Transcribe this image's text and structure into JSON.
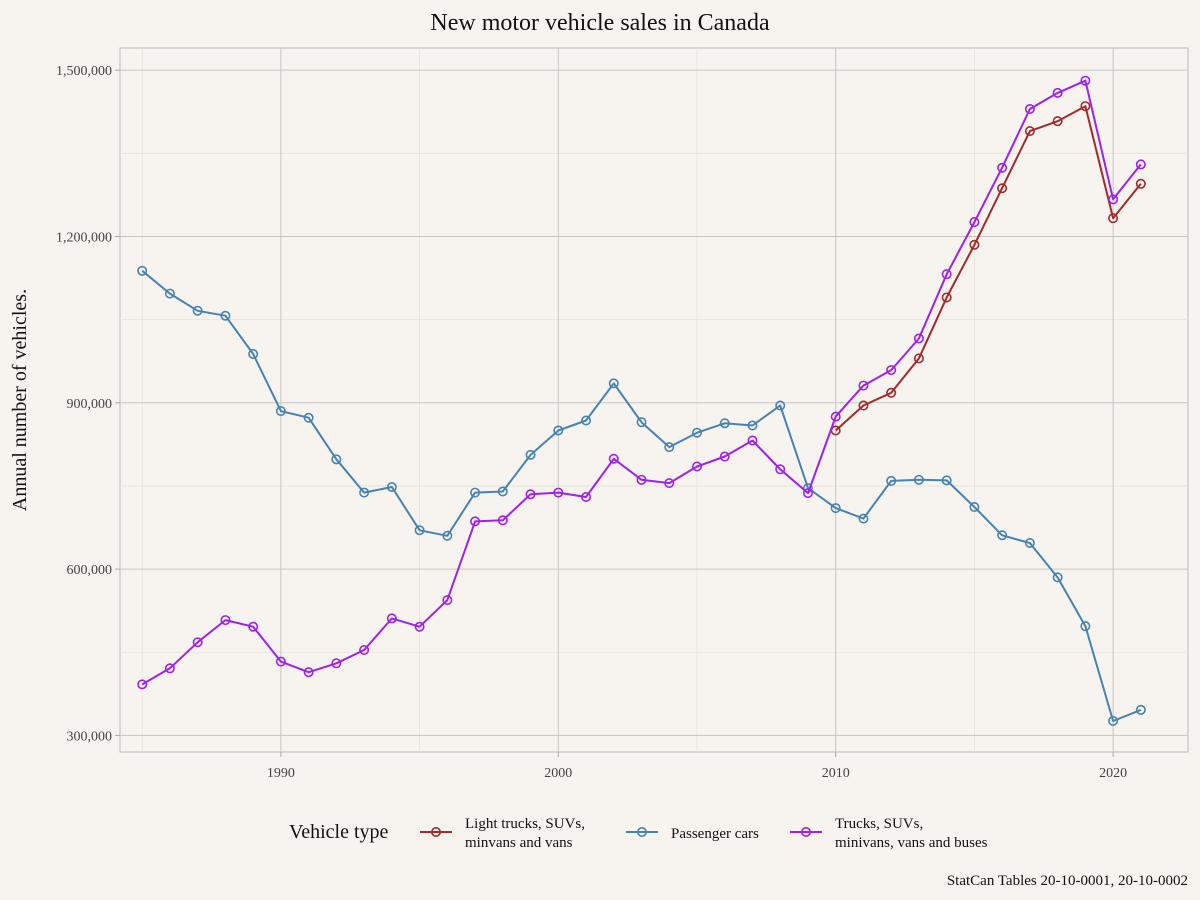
{
  "chart_data": {
    "type": "line",
    "title": "New motor vehicle sales in Canada",
    "xlabel": "",
    "ylabel": "Annual number of vehicles.",
    "xlim": [
      1984.2,
      2022.7
    ],
    "ylim": [
      270000,
      1540000
    ],
    "x_ticks": [
      1990,
      2000,
      2010,
      2020
    ],
    "x_tick_labels": [
      "1990",
      "2000",
      "2010",
      "2020"
    ],
    "y_ticks": [
      300000,
      600000,
      900000,
      1200000,
      1500000
    ],
    "y_tick_labels": [
      "300,000",
      "600,000",
      "900,000",
      "1,200,000",
      "1,500,000"
    ],
    "grid": true,
    "legend": {
      "title": "Vehicle type",
      "placement": "bottom"
    },
    "caption": "StatCan Tables 20-10-0001, 20-10-0002",
    "series": [
      {
        "name": "Light trucks, SUVs, minvans and vans",
        "legend_lines": [
          "Light trucks, SUVs,",
          "minvans and vans"
        ],
        "color": "#a52a2a",
        "x": [
          2010,
          2011,
          2012,
          2013,
          2014,
          2015,
          2016,
          2017,
          2018,
          2019,
          2020,
          2021
        ],
        "values": [
          850000,
          895000,
          918000,
          980000,
          1090000,
          1185000,
          1287000,
          1390000,
          1408000,
          1435000,
          1233000,
          1295000
        ]
      },
      {
        "name": "Passenger cars",
        "legend_lines": [
          "Passenger cars"
        ],
        "color": "#4682b4",
        "x": [
          1985,
          1986,
          1987,
          1988,
          1989,
          1990,
          1991,
          1992,
          1993,
          1994,
          1995,
          1996,
          1997,
          1998,
          1999,
          2000,
          2001,
          2002,
          2003,
          2004,
          2005,
          2006,
          2007,
          2008,
          2009,
          2010,
          2011,
          2012,
          2013,
          2014,
          2015,
          2016,
          2017,
          2018,
          2019,
          2020,
          2021
        ],
        "values": [
          1138000,
          1097000,
          1066000,
          1057000,
          988000,
          885000,
          873000,
          798000,
          738000,
          748000,
          670000,
          660000,
          738000,
          740000,
          806000,
          850000,
          868000,
          935000,
          865000,
          820000,
          846000,
          863000,
          859000,
          895000,
          746000,
          710000,
          691000,
          759000,
          761000,
          760000,
          712000,
          661000,
          647000,
          585000,
          497000,
          326000,
          346000
        ]
      },
      {
        "name": "Trucks, SUVs, minivans, vans and buses",
        "legend_lines": [
          "Trucks, SUVs,",
          "minivans, vans and buses"
        ],
        "color": "#a020f0",
        "x": [
          1985,
          1986,
          1987,
          1988,
          1989,
          1990,
          1991,
          1992,
          1993,
          1994,
          1995,
          1996,
          1997,
          1998,
          1999,
          2000,
          2001,
          2002,
          2003,
          2004,
          2005,
          2006,
          2007,
          2008,
          2009,
          2010,
          2011,
          2012,
          2013,
          2014,
          2015,
          2016,
          2017,
          2018,
          2019,
          2020,
          2021
        ],
        "values": [
          392000,
          421000,
          468000,
          508000,
          496000,
          433000,
          414000,
          430000,
          454000,
          511000,
          496000,
          544000,
          686000,
          688000,
          735000,
          738000,
          730000,
          799000,
          761000,
          755000,
          785000,
          803000,
          832000,
          780000,
          737000,
          875000,
          931000,
          959000,
          1016000,
          1132000,
          1226000,
          1324000,
          1430000,
          1459000,
          1481000,
          1267000,
          1330000
        ]
      }
    ]
  }
}
